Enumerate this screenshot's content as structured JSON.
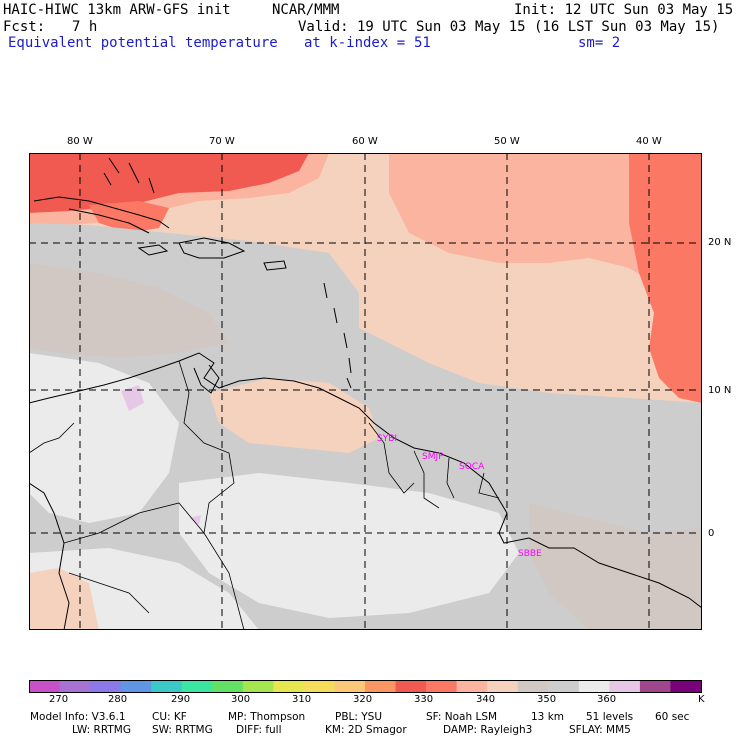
{
  "header": {
    "model_title": "HAIC-HIWC 13km ARW-GFS init",
    "org": "NCAR/MMM",
    "init": "Init: 12 UTC Sun 03 May 15",
    "fcst_label": "Fcst:",
    "fcst_value": "7 h",
    "valid": "Valid: 19 UTC Sun 03 May 15 (16 LST Sun 03 May 15)",
    "field_name": "Equivalent potential temperature",
    "level_label": "at k-index =",
    "level_value": "51",
    "smooth": "sm= 2"
  },
  "map": {
    "lon_labels": [
      "80 W",
      "70 W",
      "60 W",
      "50 W",
      "40 W"
    ],
    "lat_labels": [
      "20 N",
      "10 N",
      "0"
    ],
    "stations": [
      "SYBI",
      "SMJP",
      "SOCA",
      "SBBE"
    ],
    "colors": {
      "c270": "#c850c8",
      "c275": "#a673d2",
      "c280": "#8c78e6",
      "c285": "#5f96e6",
      "c290": "#3cc8c8",
      "c295": "#3ce6a0",
      "c300": "#64e164",
      "c305": "#a5e650",
      "c310": "#e6e650",
      "c315": "#f5dc5a",
      "c320": "#fac878",
      "c325": "#fa9664",
      "c330": "#f05a50",
      "c335": "#fa7864",
      "c340": "#fab4a0",
      "c345": "#f5d2be",
      "c350": "#d2c8c3",
      "c355": "#cdcdcd",
      "c360": "#ebebeb",
      "c365": "#e6c8e6",
      "c370": "#a0468c",
      "c375": "#780078",
      "station": "#ff00ff"
    }
  },
  "colorbar": {
    "labels": [
      "270",
      "280",
      "290",
      "300",
      "310",
      "320",
      "330",
      "340",
      "350",
      "360"
    ],
    "unit": "K"
  },
  "footer": {
    "model_info": "Model Info: V3.6.1",
    "cu": "CU: KF",
    "mp": "MP: Thompson",
    "pbl": "PBL: YSU",
    "sf": "SF: Noah LSM",
    "res": "13 km",
    "levels": "51 levels",
    "dt": "60 sec",
    "lw": "LW: RRTMG",
    "sw": "SW: RRTMG",
    "diff": "DIFF: full",
    "km": "KM: 2D Smagor",
    "damp": "DAMP: Rayleigh3",
    "sflay": "SFLAY: MM5"
  }
}
